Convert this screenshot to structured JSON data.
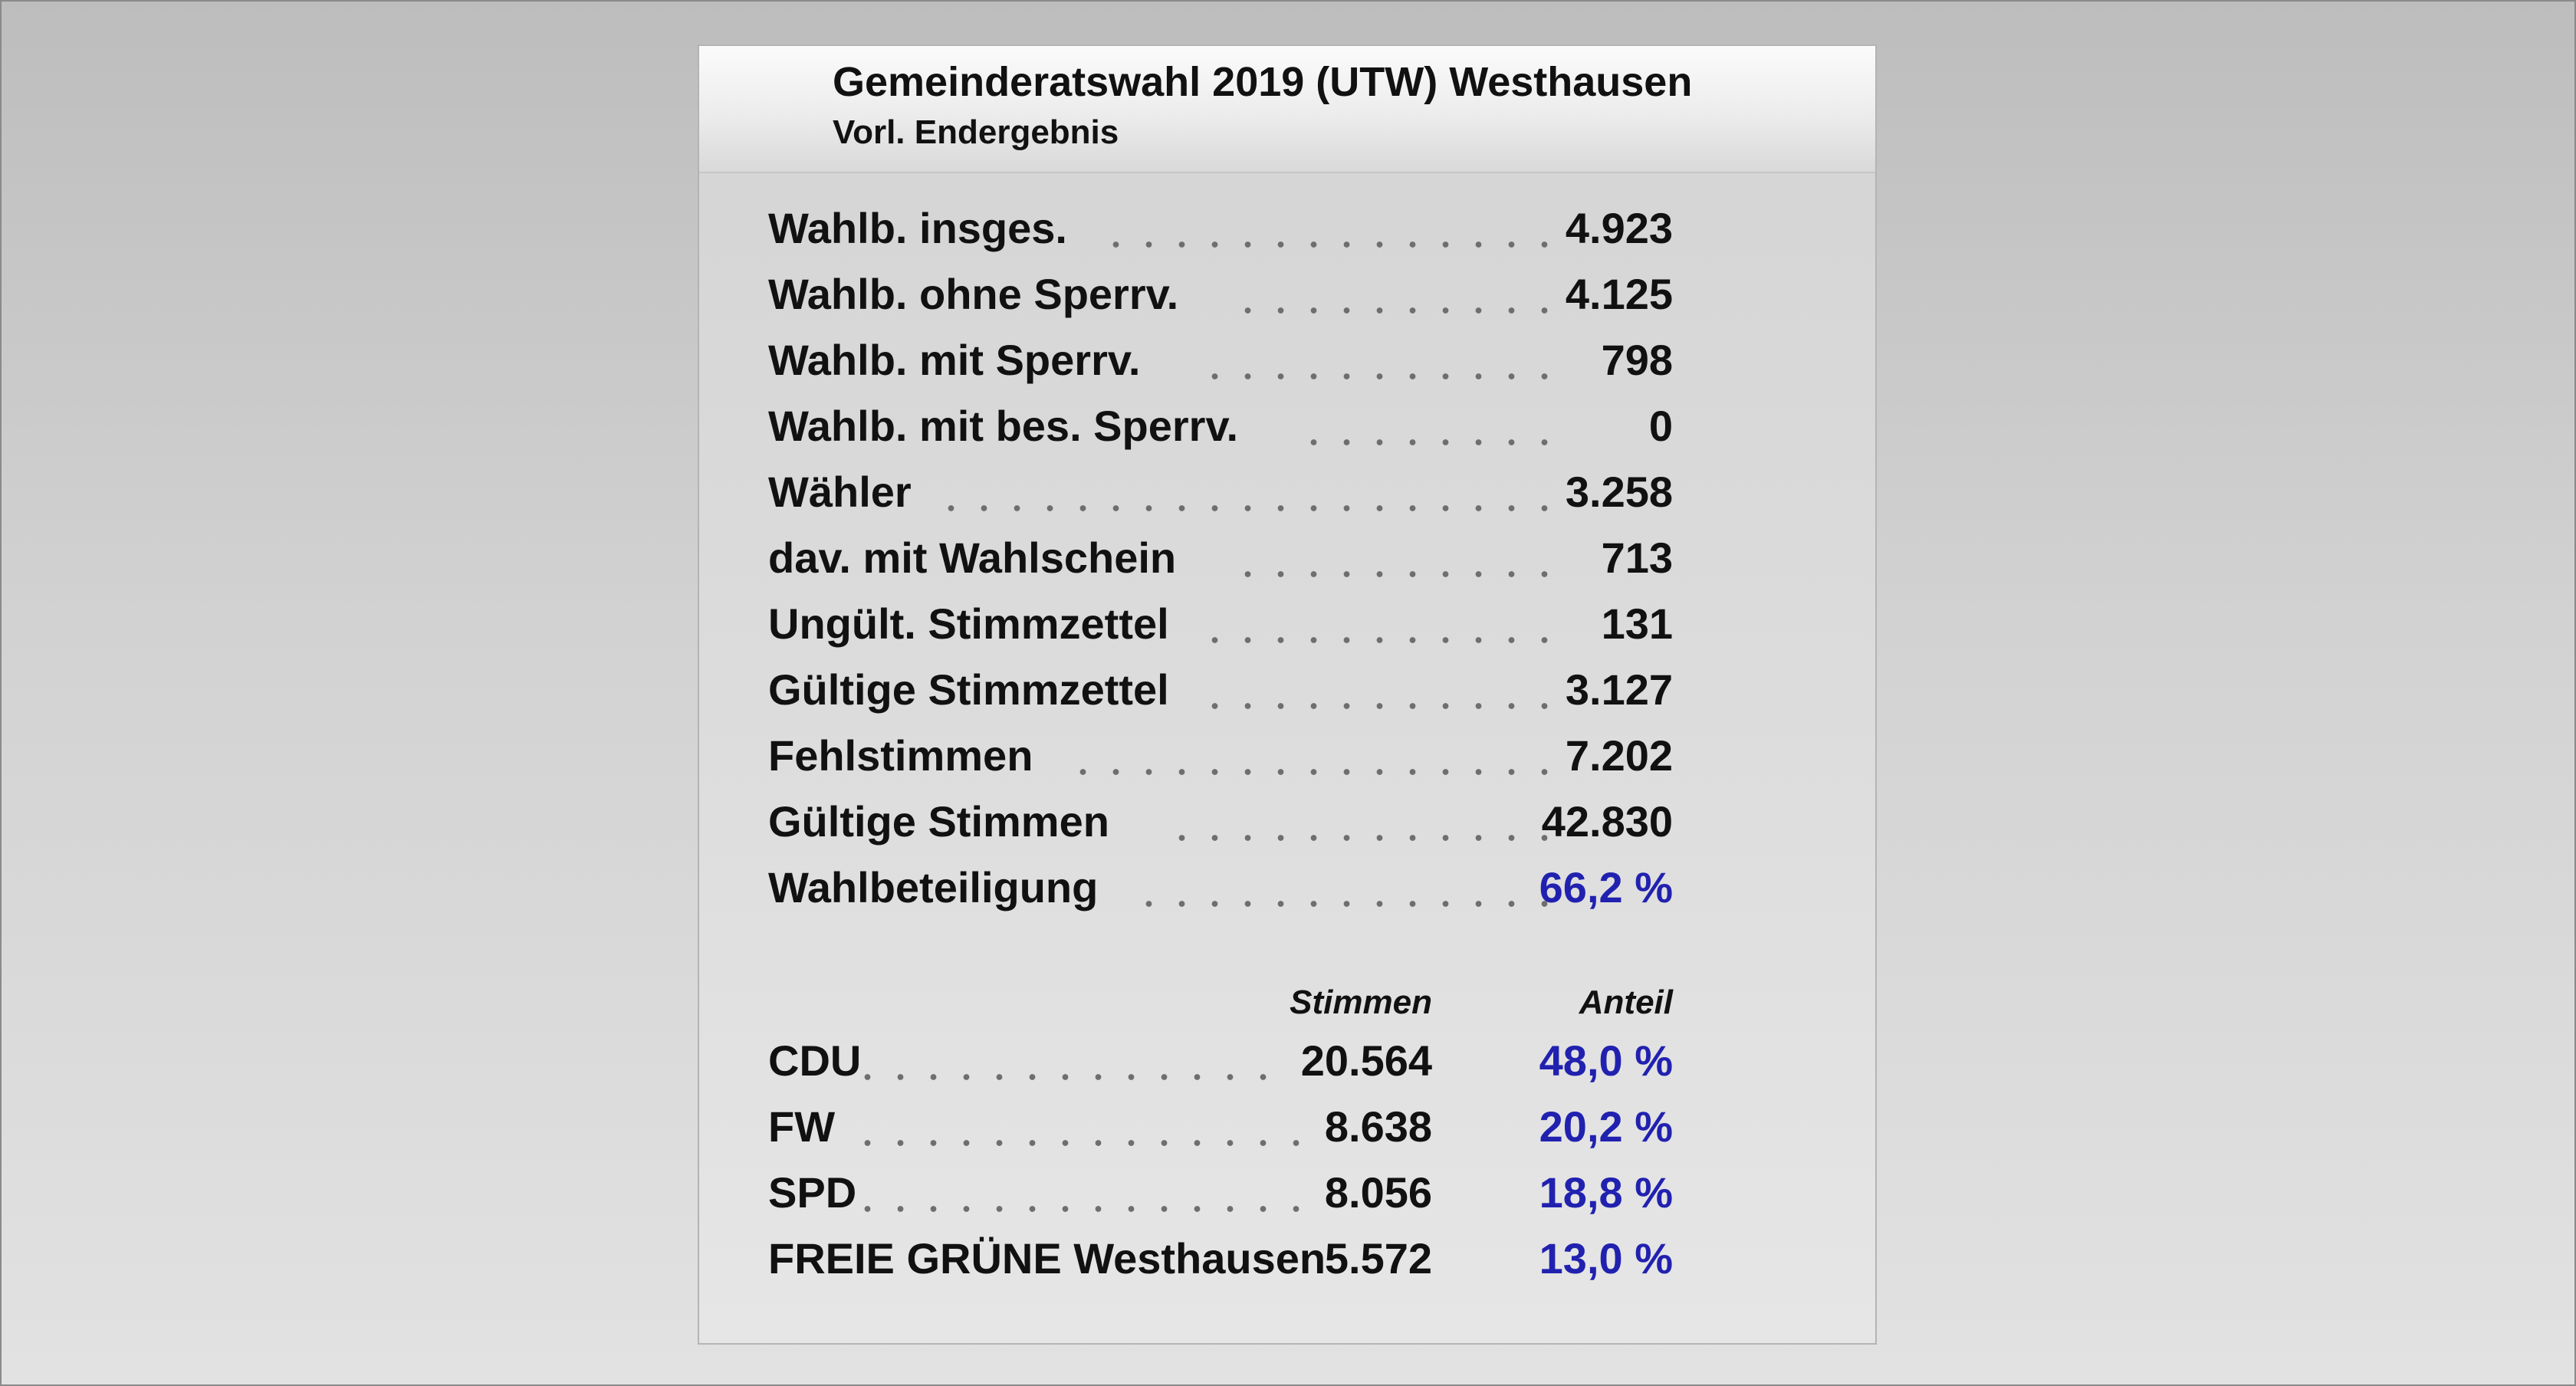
{
  "header": {
    "title": "Gemeinderatswahl 2019 (UTW) Westhausen",
    "subtitle": "Vorl. Endergebnis"
  },
  "summary": [
    {
      "label": "Wahlb. insges.",
      "value": "4.923"
    },
    {
      "label": "Wahlb. ohne Sperrv.",
      "value": "4.125"
    },
    {
      "label": "Wahlb. mit Sperrv.",
      "value": "798"
    },
    {
      "label": "Wahlb. mit bes. Sperrv.",
      "value": "0"
    },
    {
      "label": "Wähler",
      "value": "3.258"
    },
    {
      "label": "dav. mit Wahlschein",
      "value": "713"
    },
    {
      "label": "Ungült. Stimmzettel",
      "value": "131"
    },
    {
      "label": "Gültige Stimmzettel",
      "value": "3.127"
    },
    {
      "label": "Fehlstimmen",
      "value": "7.202"
    },
    {
      "label": "Gültige Stimmen",
      "value": "42.830"
    },
    {
      "label": "Wahlbeteiligung",
      "value": "66,2 %"
    }
  ],
  "columns": {
    "votes": "Stimmen",
    "share": "Anteil"
  },
  "parties": [
    {
      "name": "CDU",
      "votes": "20.564",
      "share": "48,0 %"
    },
    {
      "name": "FW",
      "votes": "8.638",
      "share": "20,2 %"
    },
    {
      "name": "SPD",
      "votes": "8.056",
      "share": "18,8 %"
    },
    {
      "name": "FREIE GRÜNE Westhausen",
      "votes": "5.572",
      "share": "13,0 %"
    }
  ],
  "colors": {
    "percent": "#2121b0",
    "text": "#111111"
  }
}
